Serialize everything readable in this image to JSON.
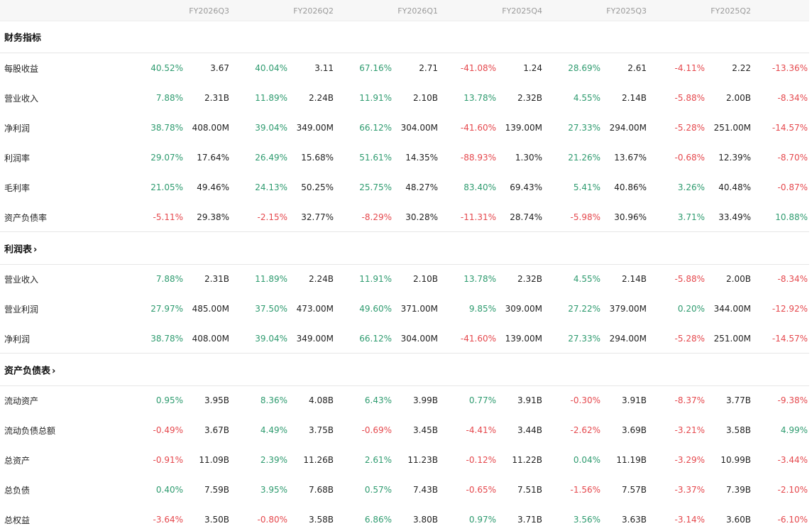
{
  "periods": [
    "FY2026Q3",
    "FY2026Q2",
    "FY2026Q1",
    "FY2025Q4",
    "FY2025Q3",
    "FY2025Q2"
  ],
  "colors": {
    "positive": "#2e9b6f",
    "negative": "#e5484d",
    "header_bg": "#f7f7f7"
  },
  "sections": [
    {
      "title": "财务指标",
      "link": false,
      "rows": [
        {
          "label": "每股收益",
          "cells": [
            {
              "change": "40.52%",
              "value": "3.67"
            },
            {
              "change": "40.04%",
              "value": "3.11"
            },
            {
              "change": "67.16%",
              "value": "2.71"
            },
            {
              "change": "-41.08%",
              "value": "1.24"
            },
            {
              "change": "28.69%",
              "value": "2.61"
            },
            {
              "change": "-4.11%",
              "value": "2.22"
            },
            {
              "change": "-13.36%",
              "value": ""
            }
          ]
        },
        {
          "label": "营业收入",
          "cells": [
            {
              "change": "7.88%",
              "value": "2.31B"
            },
            {
              "change": "11.89%",
              "value": "2.24B"
            },
            {
              "change": "11.91%",
              "value": "2.10B"
            },
            {
              "change": "13.78%",
              "value": "2.32B"
            },
            {
              "change": "4.55%",
              "value": "2.14B"
            },
            {
              "change": "-5.88%",
              "value": "2.00B"
            },
            {
              "change": "-8.34%",
              "value": ""
            }
          ]
        },
        {
          "label": "净利润",
          "cells": [
            {
              "change": "38.78%",
              "value": "408.00M"
            },
            {
              "change": "39.04%",
              "value": "349.00M"
            },
            {
              "change": "66.12%",
              "value": "304.00M"
            },
            {
              "change": "-41.60%",
              "value": "139.00M"
            },
            {
              "change": "27.33%",
              "value": "294.00M"
            },
            {
              "change": "-5.28%",
              "value": "251.00M"
            },
            {
              "change": "-14.57%",
              "value": ""
            }
          ]
        },
        {
          "label": "利润率",
          "cells": [
            {
              "change": "29.07%",
              "value": "17.64%"
            },
            {
              "change": "26.49%",
              "value": "15.68%"
            },
            {
              "change": "51.61%",
              "value": "14.35%"
            },
            {
              "change": "-88.93%",
              "value": "1.30%"
            },
            {
              "change": "21.26%",
              "value": "13.67%"
            },
            {
              "change": "-0.68%",
              "value": "12.39%"
            },
            {
              "change": "-8.70%",
              "value": ""
            }
          ]
        },
        {
          "label": "毛利率",
          "cells": [
            {
              "change": "21.05%",
              "value": "49.46%"
            },
            {
              "change": "24.13%",
              "value": "50.25%"
            },
            {
              "change": "25.75%",
              "value": "48.27%"
            },
            {
              "change": "83.40%",
              "value": "69.43%"
            },
            {
              "change": "5.41%",
              "value": "40.86%"
            },
            {
              "change": "3.26%",
              "value": "40.48%"
            },
            {
              "change": "-0.87%",
              "value": ""
            }
          ]
        },
        {
          "label": "资产负债率",
          "cells": [
            {
              "change": "-5.11%",
              "value": "29.38%"
            },
            {
              "change": "-2.15%",
              "value": "32.77%"
            },
            {
              "change": "-8.29%",
              "value": "30.28%"
            },
            {
              "change": "-11.31%",
              "value": "28.74%"
            },
            {
              "change": "-5.98%",
              "value": "30.96%"
            },
            {
              "change": "3.71%",
              "value": "33.49%"
            },
            {
              "change": "10.88%",
              "value": ""
            }
          ]
        }
      ]
    },
    {
      "title": "利润表",
      "link": true,
      "rows": [
        {
          "label": "营业收入",
          "cells": [
            {
              "change": "7.88%",
              "value": "2.31B"
            },
            {
              "change": "11.89%",
              "value": "2.24B"
            },
            {
              "change": "11.91%",
              "value": "2.10B"
            },
            {
              "change": "13.78%",
              "value": "2.32B"
            },
            {
              "change": "4.55%",
              "value": "2.14B"
            },
            {
              "change": "-5.88%",
              "value": "2.00B"
            },
            {
              "change": "-8.34%",
              "value": ""
            }
          ]
        },
        {
          "label": "营业利润",
          "cells": [
            {
              "change": "27.97%",
              "value": "485.00M"
            },
            {
              "change": "37.50%",
              "value": "473.00M"
            },
            {
              "change": "49.60%",
              "value": "371.00M"
            },
            {
              "change": "9.85%",
              "value": "309.00M"
            },
            {
              "change": "27.22%",
              "value": "379.00M"
            },
            {
              "change": "0.20%",
              "value": "344.00M"
            },
            {
              "change": "-12.92%",
              "value": ""
            }
          ]
        },
        {
          "label": "净利润",
          "cells": [
            {
              "change": "38.78%",
              "value": "408.00M"
            },
            {
              "change": "39.04%",
              "value": "349.00M"
            },
            {
              "change": "66.12%",
              "value": "304.00M"
            },
            {
              "change": "-41.60%",
              "value": "139.00M"
            },
            {
              "change": "27.33%",
              "value": "294.00M"
            },
            {
              "change": "-5.28%",
              "value": "251.00M"
            },
            {
              "change": "-14.57%",
              "value": ""
            }
          ]
        }
      ]
    },
    {
      "title": "资产负债表",
      "link": true,
      "rows": [
        {
          "label": "流动资产",
          "cells": [
            {
              "change": "0.95%",
              "value": "3.95B"
            },
            {
              "change": "8.36%",
              "value": "4.08B"
            },
            {
              "change": "6.43%",
              "value": "3.99B"
            },
            {
              "change": "0.77%",
              "value": "3.91B"
            },
            {
              "change": "-0.30%",
              "value": "3.91B"
            },
            {
              "change": "-8.37%",
              "value": "3.77B"
            },
            {
              "change": "-9.38%",
              "value": ""
            }
          ]
        },
        {
          "label": "流动负债总额",
          "cells": [
            {
              "change": "-0.49%",
              "value": "3.67B"
            },
            {
              "change": "4.49%",
              "value": "3.75B"
            },
            {
              "change": "-0.69%",
              "value": "3.45B"
            },
            {
              "change": "-4.41%",
              "value": "3.44B"
            },
            {
              "change": "-2.62%",
              "value": "3.69B"
            },
            {
              "change": "-3.21%",
              "value": "3.58B"
            },
            {
              "change": "4.99%",
              "value": ""
            }
          ]
        },
        {
          "label": "总资产",
          "cells": [
            {
              "change": "-0.91%",
              "value": "11.09B"
            },
            {
              "change": "2.39%",
              "value": "11.26B"
            },
            {
              "change": "2.61%",
              "value": "11.23B"
            },
            {
              "change": "-0.12%",
              "value": "11.22B"
            },
            {
              "change": "0.04%",
              "value": "11.19B"
            },
            {
              "change": "-3.29%",
              "value": "10.99B"
            },
            {
              "change": "-3.44%",
              "value": ""
            }
          ]
        },
        {
          "label": "总负债",
          "cells": [
            {
              "change": "0.40%",
              "value": "7.59B"
            },
            {
              "change": "3.95%",
              "value": "7.68B"
            },
            {
              "change": "0.57%",
              "value": "7.43B"
            },
            {
              "change": "-0.65%",
              "value": "7.51B"
            },
            {
              "change": "-1.56%",
              "value": "7.57B"
            },
            {
              "change": "-3.37%",
              "value": "7.39B"
            },
            {
              "change": "-2.10%",
              "value": ""
            }
          ]
        },
        {
          "label": "总权益",
          "cells": [
            {
              "change": "-3.64%",
              "value": "3.50B"
            },
            {
              "change": "-0.80%",
              "value": "3.58B"
            },
            {
              "change": "6.86%",
              "value": "3.80B"
            },
            {
              "change": "0.97%",
              "value": "3.71B"
            },
            {
              "change": "3.56%",
              "value": "3.63B"
            },
            {
              "change": "-3.14%",
              "value": "3.60B"
            },
            {
              "change": "-6.10%",
              "value": ""
            }
          ]
        }
      ]
    }
  ]
}
